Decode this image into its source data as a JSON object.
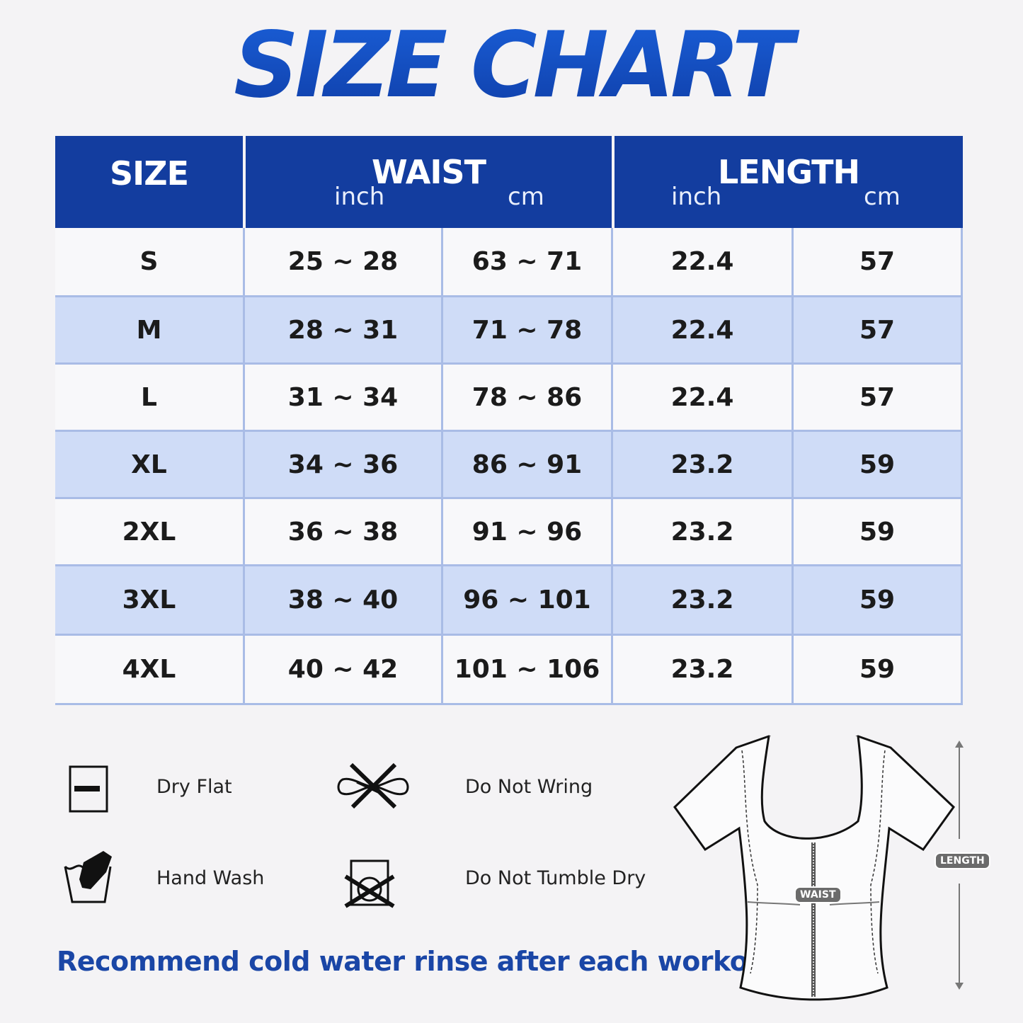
{
  "title": "SIZE CHART",
  "table": {
    "headers": {
      "size": "SIZE",
      "waist": "WAIST",
      "waist_units": [
        "inch",
        "cm"
      ],
      "length": "LENGTH",
      "length_units": [
        "inch",
        "cm"
      ]
    },
    "rows": [
      [
        "S",
        "25 ~ 28",
        "63 ~ 71",
        "22.4",
        "57"
      ],
      [
        "M",
        "28 ~ 31",
        "71 ~ 78",
        "22.4",
        "57"
      ],
      [
        "L",
        "31 ~ 34",
        "78 ~ 86",
        "22.4",
        "57"
      ],
      [
        "XL",
        "34 ~ 36",
        "86 ~ 91",
        "23.2",
        "59"
      ],
      [
        "2XL",
        "36 ~ 38",
        "91 ~ 96",
        "23.2",
        "59"
      ],
      [
        "3XL",
        "38 ~ 40",
        "96 ~ 101",
        "23.2",
        "59"
      ],
      [
        "4XL",
        "40 ~ 42",
        "101 ~ 106",
        "23.2",
        "59"
      ]
    ]
  },
  "care": [
    {
      "icon": "dry-flat-icon",
      "label": "Dry Flat"
    },
    {
      "icon": "do-not-wring-icon",
      "label": "Do Not Wring"
    },
    {
      "icon": "hand-wash-icon",
      "label": "Hand Wash"
    },
    {
      "icon": "do-not-tumble-dry-icon",
      "label": "Do Not Tumble Dry"
    }
  ],
  "note": "Recommend cold water rinse after each workout.",
  "diagram": {
    "waist_label": "WAIST",
    "length_label": "LENGTH"
  },
  "colors": {
    "header": "#133d9f",
    "stripe": "#cfdcf7",
    "border": "#a9bce6",
    "note": "#1a46a6"
  }
}
